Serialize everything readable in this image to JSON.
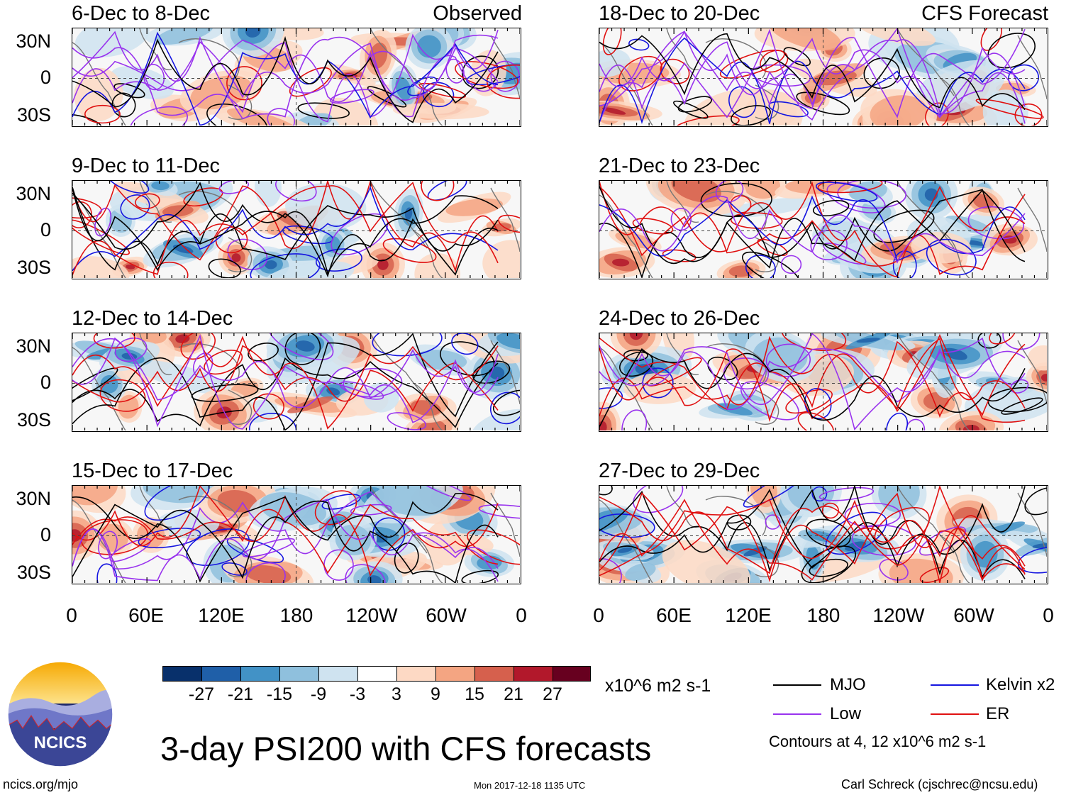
{
  "left_column_tag": "Observed",
  "right_column_tag": "CFS Forecast",
  "panels": [
    {
      "title": "6-Dec to 8-Dec"
    },
    {
      "title": "9-Dec to 11-Dec"
    },
    {
      "title": "12-Dec to 14-Dec"
    },
    {
      "title": "15-Dec to 17-Dec"
    },
    {
      "title": "18-Dec to 20-Dec"
    },
    {
      "title": "21-Dec to 23-Dec"
    },
    {
      "title": "24-Dec to 26-Dec"
    },
    {
      "title": "27-Dec to 29-Dec"
    }
  ],
  "lat_labels": [
    "30N",
    "0",
    "30S"
  ],
  "lon_labels": [
    "0",
    "60E",
    "120E",
    "180",
    "120W",
    "60W",
    "0"
  ],
  "colorbar": {
    "colors": [
      "#08306b",
      "#1f5fa8",
      "#4292c6",
      "#8fc0dd",
      "#cfe3f0",
      "#ffffff",
      "#fdd9c4",
      "#f4a582",
      "#d6604d",
      "#b2182b",
      "#67001f"
    ],
    "labels": [
      "-27",
      "-21",
      "-15",
      "-9",
      "-3",
      "3",
      "9",
      "15",
      "21",
      "27"
    ],
    "units": "x10^6 m2 s-1"
  },
  "legend": {
    "items": [
      {
        "label": "MJO",
        "color": "#000000"
      },
      {
        "label": "Kelvin x2",
        "color": "#1515e0"
      },
      {
        "label": "Low",
        "color": "#9933ee"
      },
      {
        "label": "ER",
        "color": "#e01010"
      }
    ],
    "contours_note": "Contours at 4, 12 x10^6 m2 s-1"
  },
  "main_title": "3-day PSI200 with CFS forecasts",
  "logo_text": "NCICS",
  "footer": {
    "url": "ncics.org/mjo",
    "timestamp": "Mon 2017-12-18 1135 UTC",
    "credit": "Carl Schreck (cjschrec@ncsu.edu)"
  }
}
